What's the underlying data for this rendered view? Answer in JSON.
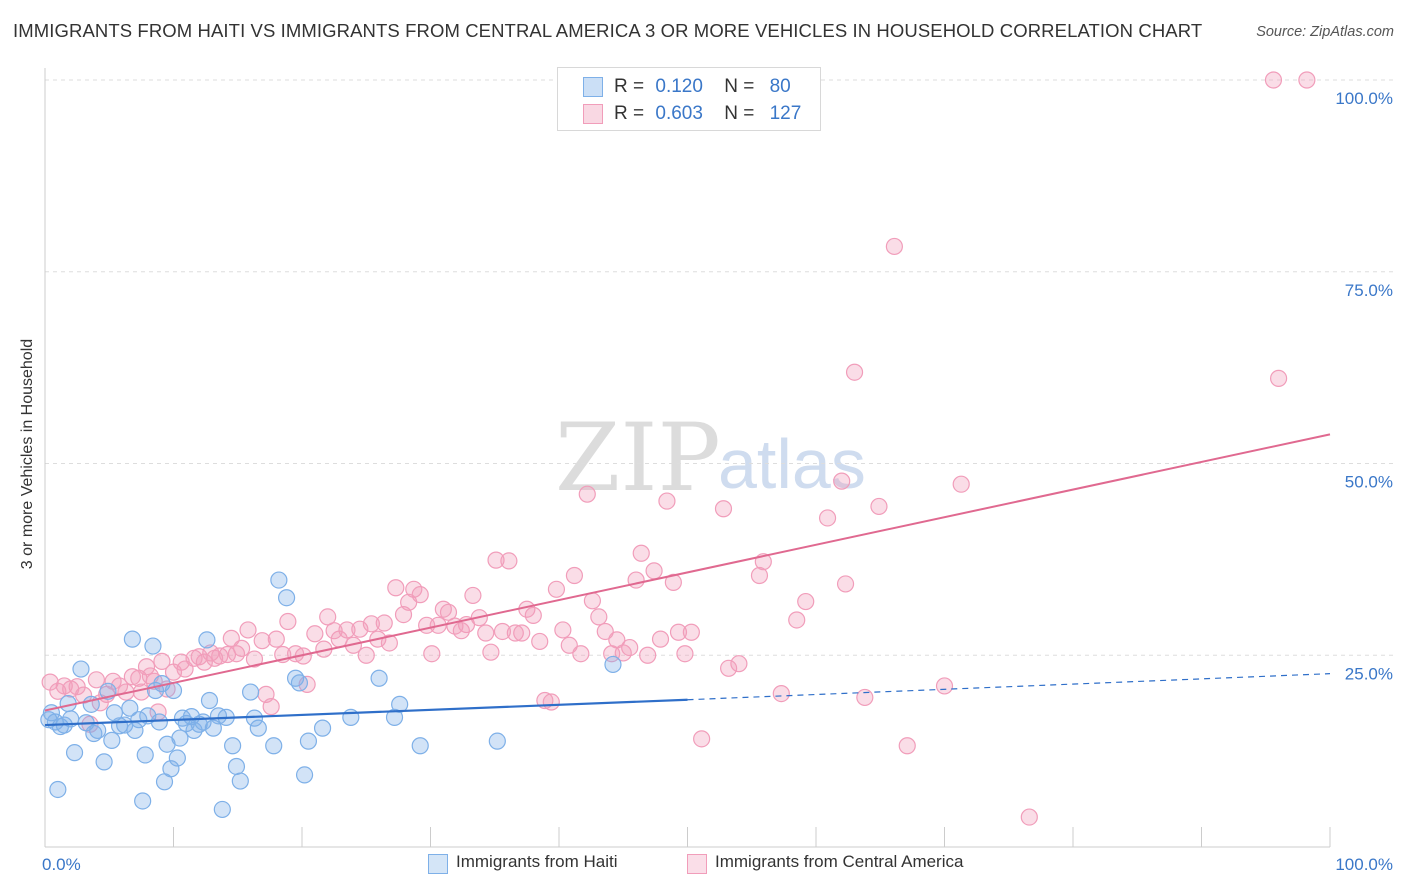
{
  "title": "IMMIGRANTS FROM HAITI VS IMMIGRANTS FROM CENTRAL AMERICA 3 OR MORE VEHICLES IN HOUSEHOLD CORRELATION CHART",
  "source": "Source: ZipAtlas.com",
  "watermark": {
    "zip": "ZIP",
    "atlas": "atlas"
  },
  "legend_top": {
    "rows": [
      {
        "r_label": "R =",
        "r_value": "0.120",
        "n_label": "N =",
        "n_value": "80",
        "color": "#7eb0e8"
      },
      {
        "r_label": "R =",
        "r_value": "0.603",
        "n_label": "N =",
        "n_value": "127",
        "color": "#f19dba"
      }
    ]
  },
  "legend_bottom": [
    {
      "label": "Immigrants from Haiti",
      "color": "#7eb0e8"
    },
    {
      "label": "Immigrants from Central America",
      "color": "#f19dba"
    }
  ],
  "chart_data": {
    "type": "scatter",
    "title": "IMMIGRANTS FROM HAITI VS IMMIGRANTS FROM CENTRAL AMERICA 3 OR MORE VEHICLES IN HOUSEHOLD CORRELATION CHART",
    "xlabel": "",
    "ylabel": "3 or more Vehicles in Household",
    "xlim": [
      0,
      100
    ],
    "ylim": [
      0,
      100
    ],
    "x_tick_labels": [
      "0.0%",
      "100.0%"
    ],
    "y_ticks": [
      25,
      50,
      75,
      100
    ],
    "y_tick_labels": [
      "25.0%",
      "50.0%",
      "75.0%",
      "100.0%"
    ],
    "grid": "horizontal dashed",
    "legend_position": "top-center",
    "series": [
      {
        "name": "Immigrants from Haiti",
        "color": "#7eb0e8",
        "line_color": "#2f6fc9",
        "trend": {
          "x0": 0,
          "y0": 15.9,
          "x1": 50,
          "y1": 19.2,
          "dashed_to_x": 100,
          "dashed_to_y": 22.6
        },
        "points": [
          [
            0.3,
            16.6
          ],
          [
            0.5,
            17.5
          ],
          [
            0.8,
            16.3
          ],
          [
            1.0,
            7.5
          ],
          [
            1.2,
            15.7
          ],
          [
            1.5,
            15.9
          ],
          [
            1.8,
            18.7
          ],
          [
            2.0,
            16.7
          ],
          [
            2.3,
            12.3
          ],
          [
            2.8,
            23.2
          ],
          [
            3.2,
            16.2
          ],
          [
            3.6,
            18.6
          ],
          [
            3.8,
            14.8
          ],
          [
            4.1,
            15.2
          ],
          [
            4.6,
            11.1
          ],
          [
            4.9,
            20.3
          ],
          [
            5.2,
            13.9
          ],
          [
            5.4,
            17.5
          ],
          [
            5.8,
            15.8
          ],
          [
            6.2,
            15.9
          ],
          [
            6.6,
            18.1
          ],
          [
            6.8,
            27.1
          ],
          [
            7.0,
            15.2
          ],
          [
            7.3,
            16.6
          ],
          [
            7.6,
            6.0
          ],
          [
            7.8,
            12.0
          ],
          [
            8.0,
            17.1
          ],
          [
            8.4,
            26.2
          ],
          [
            8.6,
            20.4
          ],
          [
            8.9,
            16.3
          ],
          [
            9.1,
            21.3
          ],
          [
            9.3,
            8.5
          ],
          [
            9.5,
            13.4
          ],
          [
            9.8,
            10.2
          ],
          [
            10.0,
            20.4
          ],
          [
            10.3,
            11.6
          ],
          [
            10.5,
            14.2
          ],
          [
            10.7,
            16.8
          ],
          [
            11.0,
            16.1
          ],
          [
            11.4,
            17.0
          ],
          [
            11.6,
            15.2
          ],
          [
            12.0,
            16.0
          ],
          [
            12.3,
            16.3
          ],
          [
            12.6,
            27.0
          ],
          [
            12.8,
            19.1
          ],
          [
            13.1,
            15.5
          ],
          [
            13.5,
            17.1
          ],
          [
            13.8,
            4.9
          ],
          [
            14.1,
            16.9
          ],
          [
            14.6,
            13.2
          ],
          [
            14.9,
            10.5
          ],
          [
            15.2,
            8.6
          ],
          [
            16.0,
            20.2
          ],
          [
            16.3,
            16.8
          ],
          [
            16.6,
            15.5
          ],
          [
            17.8,
            13.2
          ],
          [
            18.2,
            34.8
          ],
          [
            18.8,
            32.5
          ],
          [
            19.5,
            22.0
          ],
          [
            19.8,
            21.4
          ],
          [
            20.2,
            9.4
          ],
          [
            20.5,
            13.8
          ],
          [
            21.6,
            15.5
          ],
          [
            23.8,
            16.9
          ],
          [
            26.0,
            22.0
          ],
          [
            27.2,
            16.9
          ],
          [
            27.6,
            18.6
          ],
          [
            29.2,
            13.2
          ],
          [
            35.2,
            13.8
          ],
          [
            44.2,
            23.8
          ]
        ]
      },
      {
        "name": "Immigrants from Central America",
        "color": "#f19dba",
        "line_color": "#e06990",
        "trend": {
          "x0": 0,
          "y0": 17.8,
          "x1": 100,
          "y1": 53.8
        },
        "points": [
          [
            0.4,
            21.5
          ],
          [
            1.0,
            20.3
          ],
          [
            1.5,
            21.0
          ],
          [
            2.0,
            20.6
          ],
          [
            2.5,
            20.9
          ],
          [
            3.0,
            19.8
          ],
          [
            3.5,
            16.0
          ],
          [
            4.0,
            21.8
          ],
          [
            4.3,
            18.8
          ],
          [
            4.8,
            19.9
          ],
          [
            5.3,
            21.6
          ],
          [
            5.8,
            21.0
          ],
          [
            6.3,
            20.2
          ],
          [
            6.8,
            22.2
          ],
          [
            7.3,
            22.0
          ],
          [
            7.5,
            20.2
          ],
          [
            7.9,
            23.5
          ],
          [
            8.2,
            22.3
          ],
          [
            8.5,
            21.6
          ],
          [
            8.8,
            17.6
          ],
          [
            9.1,
            24.2
          ],
          [
            9.5,
            20.6
          ],
          [
            10.0,
            22.8
          ],
          [
            10.6,
            24.1
          ],
          [
            10.9,
            23.2
          ],
          [
            11.6,
            24.6
          ],
          [
            12.0,
            24.8
          ],
          [
            12.4,
            24.1
          ],
          [
            12.9,
            25.3
          ],
          [
            13.2,
            24.6
          ],
          [
            13.6,
            24.9
          ],
          [
            14.2,
            25.1
          ],
          [
            14.5,
            27.2
          ],
          [
            14.9,
            25.2
          ],
          [
            15.3,
            25.9
          ],
          [
            15.8,
            28.3
          ],
          [
            16.3,
            24.5
          ],
          [
            16.9,
            26.9
          ],
          [
            17.2,
            19.9
          ],
          [
            17.6,
            18.3
          ],
          [
            18.0,
            27.1
          ],
          [
            18.5,
            25.1
          ],
          [
            18.9,
            29.4
          ],
          [
            19.5,
            25.2
          ],
          [
            20.1,
            24.9
          ],
          [
            20.4,
            21.2
          ],
          [
            21.0,
            27.8
          ],
          [
            21.7,
            25.8
          ],
          [
            22.0,
            30.0
          ],
          [
            22.5,
            28.2
          ],
          [
            22.9,
            27.1
          ],
          [
            23.5,
            28.3
          ],
          [
            24.0,
            26.3
          ],
          [
            24.5,
            28.4
          ],
          [
            25.0,
            25.0
          ],
          [
            25.4,
            29.1
          ],
          [
            25.9,
            27.1
          ],
          [
            26.4,
            29.2
          ],
          [
            26.8,
            26.6
          ],
          [
            27.3,
            33.8
          ],
          [
            27.9,
            30.3
          ],
          [
            28.3,
            31.9
          ],
          [
            28.7,
            33.6
          ],
          [
            29.2,
            32.9
          ],
          [
            29.7,
            28.9
          ],
          [
            30.1,
            25.2
          ],
          [
            30.6,
            28.9
          ],
          [
            31.0,
            31.0
          ],
          [
            31.4,
            30.6
          ],
          [
            31.9,
            28.8
          ],
          [
            32.4,
            28.2
          ],
          [
            32.8,
            29.0
          ],
          [
            33.3,
            32.8
          ],
          [
            33.8,
            29.9
          ],
          [
            34.3,
            27.9
          ],
          [
            34.7,
            25.4
          ],
          [
            35.1,
            37.4
          ],
          [
            35.6,
            28.1
          ],
          [
            36.1,
            37.3
          ],
          [
            36.6,
            27.9
          ],
          [
            37.1,
            27.9
          ],
          [
            37.5,
            31.0
          ],
          [
            38.0,
            30.2
          ],
          [
            38.5,
            26.8
          ],
          [
            38.9,
            19.1
          ],
          [
            39.4,
            18.9
          ],
          [
            39.8,
            33.6
          ],
          [
            40.3,
            28.3
          ],
          [
            40.8,
            26.3
          ],
          [
            41.2,
            35.4
          ],
          [
            41.7,
            25.2
          ],
          [
            42.2,
            46.0
          ],
          [
            42.6,
            32.1
          ],
          [
            43.1,
            30.0
          ],
          [
            43.6,
            28.1
          ],
          [
            44.1,
            25.2
          ],
          [
            44.5,
            27.0
          ],
          [
            45.0,
            25.3
          ],
          [
            45.5,
            26.0
          ],
          [
            46.0,
            34.8
          ],
          [
            46.4,
            38.3
          ],
          [
            46.9,
            25.0
          ],
          [
            47.4,
            36.0
          ],
          [
            47.9,
            27.1
          ],
          [
            48.4,
            45.1
          ],
          [
            48.9,
            34.5
          ],
          [
            49.3,
            28.0
          ],
          [
            49.8,
            25.2
          ],
          [
            50.3,
            28.0
          ],
          [
            51.1,
            14.1
          ],
          [
            52.8,
            44.1
          ],
          [
            53.2,
            23.3
          ],
          [
            54.0,
            23.9
          ],
          [
            55.6,
            35.4
          ],
          [
            55.9,
            37.2
          ],
          [
            57.3,
            20.0
          ],
          [
            58.5,
            29.6
          ],
          [
            59.2,
            32.0
          ],
          [
            60.9,
            42.9
          ],
          [
            62.0,
            47.7
          ],
          [
            62.3,
            34.3
          ],
          [
            63.0,
            61.9
          ],
          [
            63.8,
            19.5
          ],
          [
            64.9,
            44.4
          ],
          [
            66.1,
            78.3
          ],
          [
            67.1,
            13.2
          ],
          [
            70.0,
            21.0
          ],
          [
            71.3,
            47.3
          ],
          [
            76.6,
            3.9
          ],
          [
            96.0,
            61.1
          ],
          [
            98.2,
            100.0
          ]
        ],
        "extra_points_at_top": [
          [
            95.6,
            100.0
          ]
        ]
      }
    ]
  }
}
